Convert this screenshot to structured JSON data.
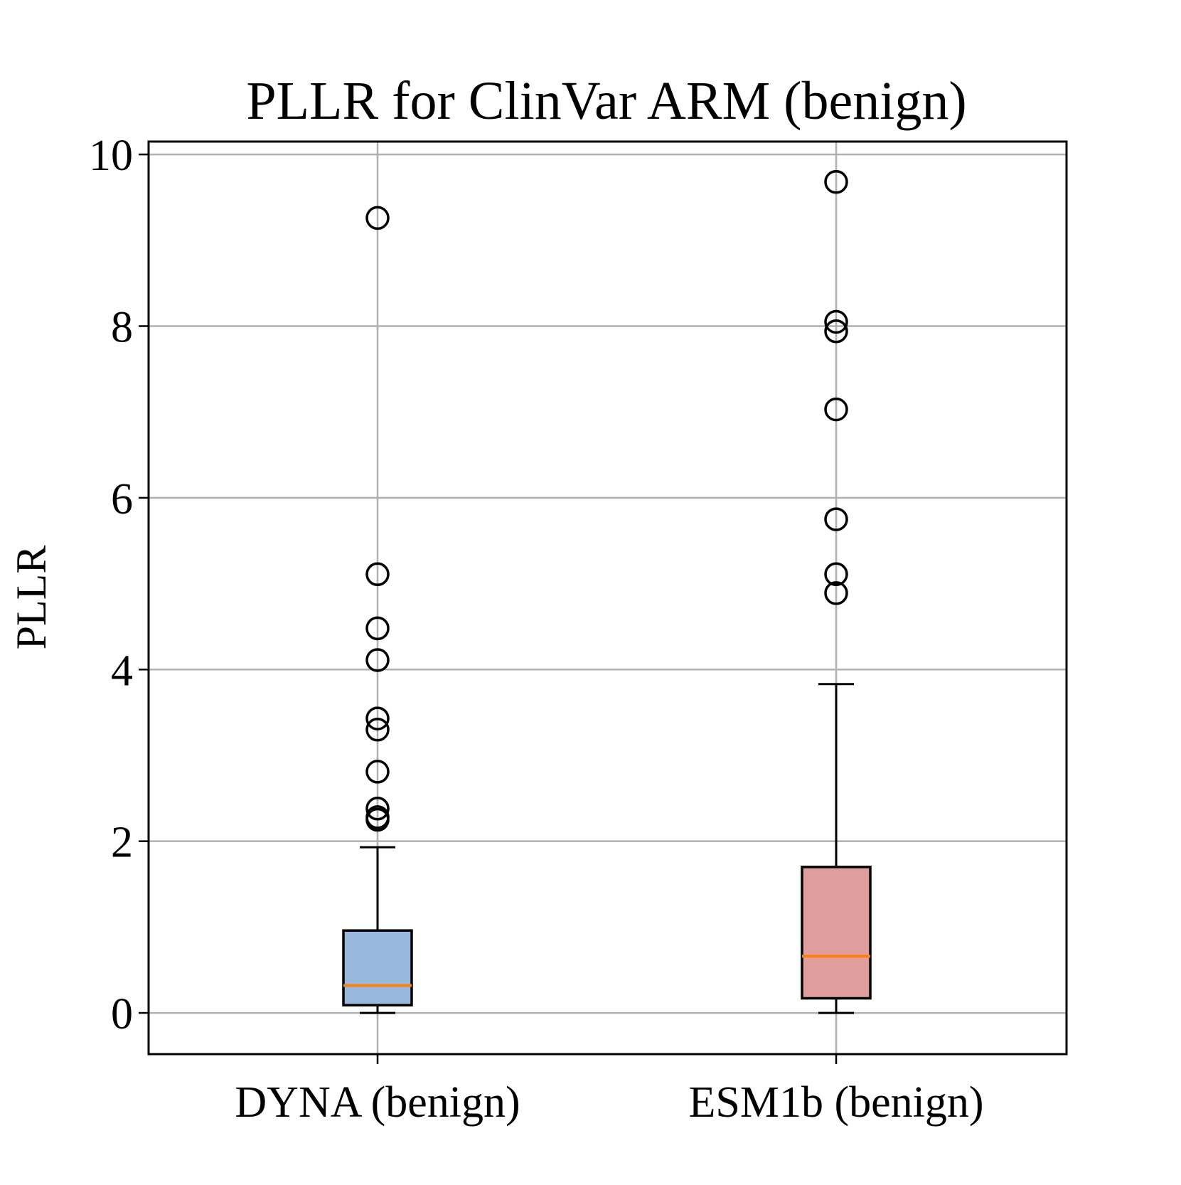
{
  "chart_data": {
    "type": "boxplot",
    "title": "PLLR for ClinVar ARM (benign)",
    "xlabel": "",
    "ylabel": "PLLR",
    "ylim": [
      -0.48,
      10.15
    ],
    "yticks": [
      0,
      2,
      4,
      6,
      8,
      10
    ],
    "grid": true,
    "categories": [
      "DYNA (benign)",
      "ESM1b (benign)"
    ],
    "series": [
      {
        "category": "DYNA (benign)",
        "whisker_low": 0.0,
        "q1": 0.09,
        "median": 0.32,
        "q3": 0.96,
        "whisker_high": 1.93,
        "outliers": [
          9.26,
          5.11,
          4.48,
          4.11,
          3.43,
          3.3,
          2.81,
          2.38,
          2.28,
          2.25
        ],
        "fill": "#98b9dd"
      },
      {
        "category": "ESM1b (benign)",
        "whisker_low": 0.0,
        "q1": 0.17,
        "median": 0.66,
        "q3": 1.7,
        "whisker_high": 3.83,
        "outliers": [
          9.68,
          8.05,
          7.94,
          7.03,
          5.75,
          5.11,
          4.89
        ],
        "fill": "#e09d9d"
      }
    ],
    "colors": {
      "median": "#ff7f0e",
      "grid": "#b0b0b0",
      "axes": "#000000"
    }
  }
}
